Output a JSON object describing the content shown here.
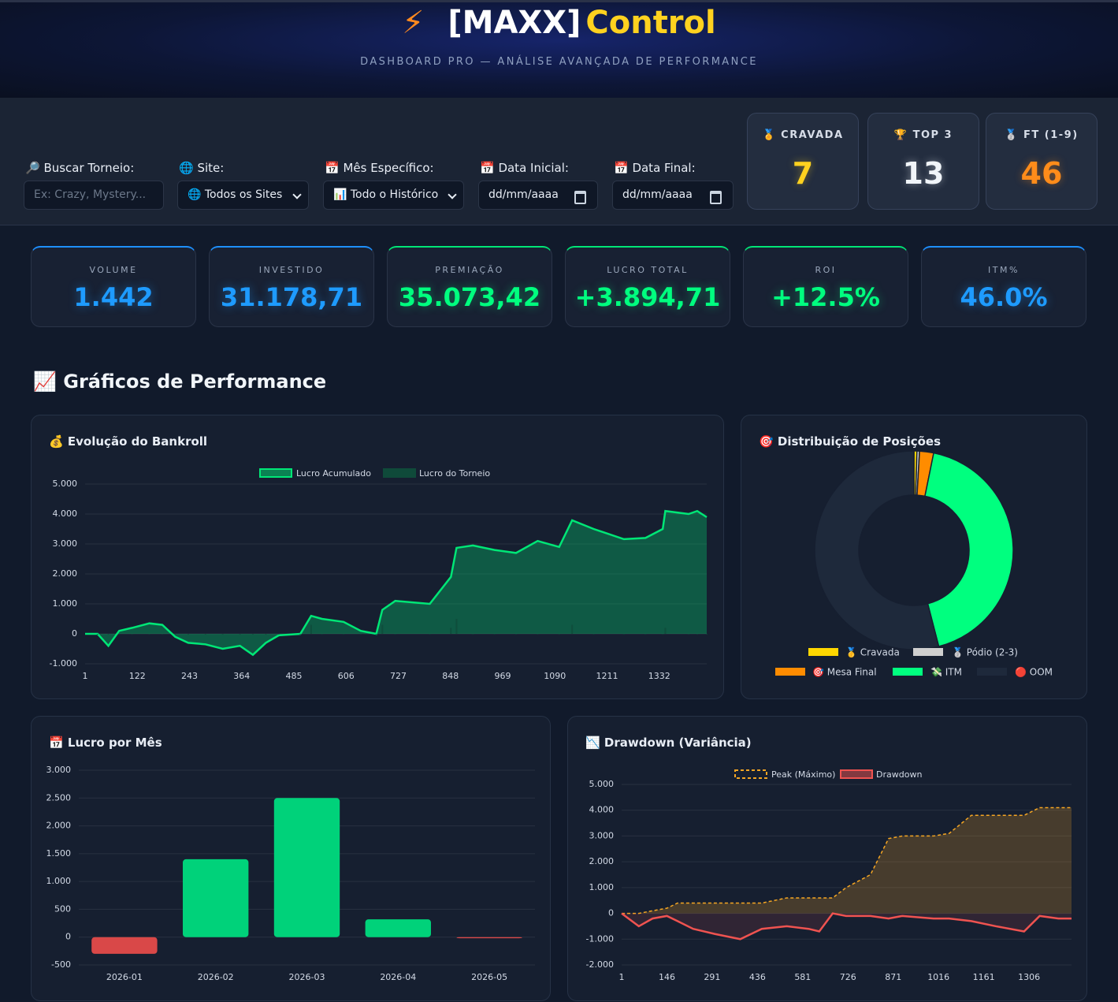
{
  "header": {
    "icon": "⚡",
    "title_a": "[MAXX]",
    "title_b": "Control",
    "subtitle": "DASHBOARD PRO — ANÁLISE AVANÇADA DE PERFORMANCE"
  },
  "filters": [
    {
      "label": "🔎 Buscar Torneio:",
      "placeholder": "Ex: Crazy, Mystery..."
    },
    {
      "label": "🌐 Site:",
      "value": "🌐 Todos os Sites"
    },
    {
      "label": "📅 Mês Específico:",
      "value": "📊 Todo o Histórico"
    },
    {
      "label": "📅 Data Inicial:",
      "value": "dd/mm/aaaa"
    },
    {
      "label": "📅 Data Final:",
      "value": "dd/mm/aaaa"
    }
  ],
  "medals": [
    {
      "label": "🏅 CRAVADA",
      "value": 7
    },
    {
      "label": "🏆 TOP 3",
      "value": 13
    },
    {
      "label": "🥈 FT (1-9)",
      "value": 46
    }
  ],
  "stats": [
    {
      "label": "VOLUME",
      "value": "1.442"
    },
    {
      "label": "INVESTIDO",
      "value": "31.178,71"
    },
    {
      "label": "PREMIAÇÃO",
      "value": "35.073,42"
    },
    {
      "label": "LUCRO TOTAL",
      "value": "+3.894,71"
    },
    {
      "label": "ROI",
      "value": "+12.5%"
    },
    {
      "label": "ITM%",
      "value": "46.0%"
    }
  ],
  "section_title": "📈 Gráficos de Performance",
  "chart_data": [
    {
      "type": "line",
      "title": "💰 Evolução do Bankroll",
      "x": [
        1,
        30,
        55,
        80,
        110,
        150,
        180,
        210,
        240,
        280,
        320,
        360,
        390,
        420,
        450,
        500,
        525,
        550,
        600,
        640,
        676,
        690,
        720,
        800,
        849,
        862,
        900,
        950,
        1000,
        1050,
        1100,
        1130,
        1180,
        1250,
        1300,
        1340,
        1346,
        1400,
        1420,
        1442
      ],
      "series": [
        {
          "name": "Lucro Acumulado",
          "color": "#00e676",
          "fill": true,
          "values": [
            0,
            0,
            -400,
            100,
            200,
            350,
            300,
            -100,
            -300,
            -350,
            -500,
            -400,
            -700,
            -300,
            -50,
            0,
            600,
            500,
            400,
            100,
            0,
            800,
            1100,
            1000,
            1900,
            2870,
            2950,
            2800,
            2700,
            3100,
            2900,
            3790,
            3500,
            3160,
            3200,
            3500,
            4100,
            4000,
            4100,
            3895
          ]
        },
        {
          "name": "Lucro do Torneio",
          "color": "#0f4a3a",
          "type": "bar",
          "values": [
            0,
            -20,
            -20,
            -20,
            -20,
            -20,
            -20,
            -20,
            -20,
            -20,
            -20,
            -20,
            -20,
            -20,
            -20,
            -20,
            300,
            -20,
            -20,
            -20,
            -20,
            300,
            -20,
            -20,
            200,
            500,
            -20,
            -20,
            -20,
            -20,
            -20,
            300,
            -20,
            -20,
            -20,
            -20,
            200,
            -20,
            -20,
            -20
          ]
        }
      ],
      "xlim": [
        1,
        1442
      ],
      "xticks": [
        1,
        122,
        243,
        364,
        485,
        606,
        727,
        848,
        969,
        1090,
        1211,
        1332
      ],
      "ylim": [
        -1000,
        5000
      ],
      "yticks": [
        {
          "value": -1000,
          "label": "-1.000"
        },
        0,
        {
          "value": 1000,
          "label": "1.000"
        },
        {
          "value": 2000,
          "label": "2.000"
        },
        {
          "value": 3000,
          "label": "3.000"
        },
        {
          "value": 4000,
          "label": "4.000"
        },
        {
          "value": 5000,
          "label": "5.000"
        }
      ],
      "grid": true,
      "legend": "top"
    },
    {
      "type": "pie",
      "title": "🎯 Distribuição de Posições",
      "categories": [
        "🥇 Cravada",
        "🥈 Pódio (2-3)",
        "🎯 Mesa Final",
        "💸 ITM",
        "🔴 OOM"
      ],
      "values": [
        7,
        6,
        33,
        617,
        779
      ],
      "colors": [
        "#ffd700",
        "#cfcfcf",
        "#ff8c00",
        "#00ff7f",
        "#1e293b"
      ],
      "donut": true,
      "legend": "bottom"
    },
    {
      "type": "bar",
      "title": "📅 Lucro por Mês",
      "categories": [
        "2026-01",
        "2026-02",
        "2026-03",
        "2026-04",
        "2026-05"
      ],
      "values": [
        -300,
        1400,
        2500,
        320,
        -20
      ],
      "colors": [
        "#d94848",
        "#00d27a",
        "#00d27a",
        "#00d27a",
        "#d94848"
      ],
      "ylim": [
        -500,
        3000
      ],
      "yticks": [
        -500,
        0,
        500,
        {
          "value": 1000,
          "label": "1.000"
        },
        {
          "value": 1500,
          "label": "1.500"
        },
        {
          "value": 2000,
          "label": "2.000"
        },
        {
          "value": 2500,
          "label": "2.500"
        },
        {
          "value": 3000,
          "label": "3.000"
        }
      ],
      "grid": true
    },
    {
      "type": "line",
      "title": "📉 Drawdown (Variância)",
      "x": [
        1,
        56,
        100,
        146,
        180,
        230,
        300,
        381,
        450,
        530,
        600,
        634,
        677,
        720,
        798,
        856,
        900,
        1000,
        1050,
        1121,
        1200,
        1290,
        1340,
        1400,
        1442
      ],
      "series": [
        {
          "name": "Peak (Máximo)",
          "color": "#f5a623",
          "dashed": true,
          "fill": true,
          "values": [
            0,
            0,
            100,
            200,
            400,
            400,
            400,
            400,
            400,
            600,
            600,
            600,
            600,
            1000,
            1500,
            2900,
            3000,
            3000,
            3100,
            3800,
            3800,
            3800,
            4100,
            4100,
            4100
          ]
        },
        {
          "name": "Drawdown",
          "color": "#ef5350",
          "values": [
            0,
            -500,
            -200,
            -100,
            -300,
            -600,
            -800,
            -1000,
            -600,
            -500,
            -600,
            -700,
            0,
            -100,
            -100,
            -200,
            -100,
            -200,
            -200,
            -300,
            -500,
            -700,
            -100,
            -200,
            -200
          ]
        }
      ],
      "xlim": [
        1,
        1442
      ],
      "xticks": [
        1,
        146,
        291,
        436,
        581,
        726,
        871,
        1016,
        1161,
        1306
      ],
      "ylim": [
        -2000,
        5000
      ],
      "yticks": [
        {
          "value": -2000,
          "label": "-2.000"
        },
        {
          "value": -1000,
          "label": "-1.000"
        },
        0,
        {
          "value": 1000,
          "label": "1.000"
        },
        {
          "value": 2000,
          "label": "2.000"
        },
        {
          "value": 3000,
          "label": "3.000"
        },
        {
          "value": 4000,
          "label": "4.000"
        },
        {
          "value": 5000,
          "label": "5.000"
        }
      ],
      "grid": true,
      "legend": "top"
    }
  ]
}
